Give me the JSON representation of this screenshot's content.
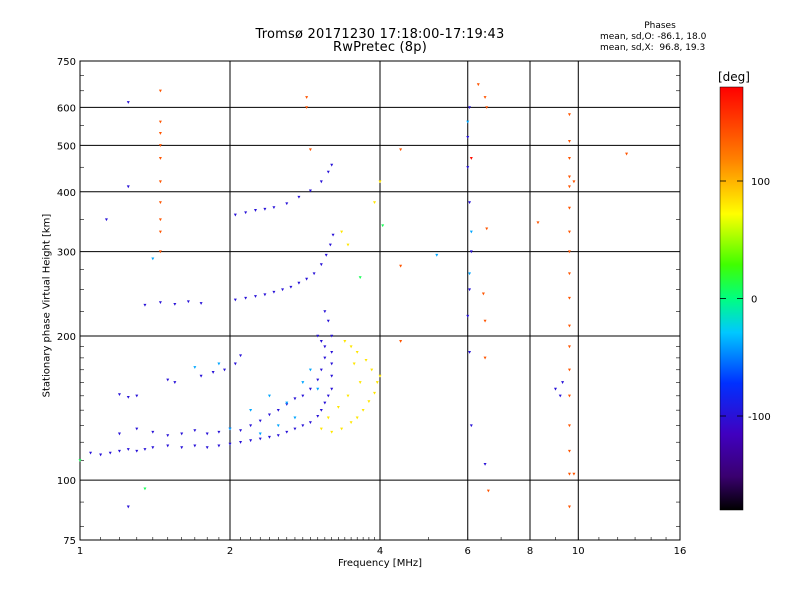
{
  "header": {
    "title": "Tromsø 20171230 17:18:00-17:19:43",
    "subtitle": "RwPretec (8p)"
  },
  "stats": {
    "heading": "Phases",
    "line_o": "mean, sd,O: -86.1, 18.0",
    "line_x": "mean, sd,X:  96.8, 19.3"
  },
  "colorbar": {
    "unit": "[deg]",
    "ticks": [
      100,
      0,
      -100
    ],
    "range": [
      -180,
      180
    ]
  },
  "chart_data": {
    "type": "scatter",
    "title": "Tromsø 20171230 17:18:00-17:19:43",
    "subtitle": "RwPretec (8p)",
    "xlabel": "Frequency [MHz]",
    "ylabel": "Stationary phase Virtual Height [km]",
    "x_scale": "log",
    "y_scale": "log",
    "xlim": [
      1,
      16
    ],
    "ylim": [
      75,
      750
    ],
    "xticks": [
      1,
      2,
      4,
      6,
      8,
      10,
      16
    ],
    "yticks": [
      75,
      100,
      200,
      300,
      400,
      500,
      600,
      750
    ],
    "grid": true,
    "colorbar_label": "[deg]",
    "series": [
      {
        "color_phase": -100,
        "points": [
          [
            1.05,
            114
          ],
          [
            1.1,
            113
          ],
          [
            1.15,
            114
          ],
          [
            1.2,
            115
          ],
          [
            1.25,
            116
          ],
          [
            1.3,
            115
          ],
          [
            1.35,
            116
          ],
          [
            1.4,
            117
          ],
          [
            1.5,
            118
          ],
          [
            1.6,
            117
          ],
          [
            1.7,
            118
          ],
          [
            1.8,
            117
          ],
          [
            1.9,
            118
          ],
          [
            2.0,
            119
          ],
          [
            2.1,
            120
          ],
          [
            2.2,
            121
          ],
          [
            2.3,
            122
          ],
          [
            2.4,
            123
          ],
          [
            2.5,
            124
          ],
          [
            2.6,
            126
          ],
          [
            2.7,
            128
          ],
          [
            2.8,
            130
          ],
          [
            2.9,
            132
          ],
          [
            3.0,
            136
          ],
          [
            3.05,
            140
          ],
          [
            3.1,
            145
          ],
          [
            3.15,
            150
          ],
          [
            3.2,
            155
          ],
          [
            3.2,
            165
          ],
          [
            3.2,
            175
          ],
          [
            3.2,
            185
          ],
          [
            3.2,
            200
          ],
          [
            3.15,
            215
          ],
          [
            3.1,
            225
          ],
          [
            1.2,
            125
          ],
          [
            1.3,
            128
          ],
          [
            1.4,
            126
          ],
          [
            1.5,
            124
          ],
          [
            1.6,
            125
          ],
          [
            1.7,
            127
          ],
          [
            1.8,
            125
          ],
          [
            1.9,
            126
          ],
          [
            2.0,
            128
          ],
          [
            2.1,
            127
          ],
          [
            2.2,
            130
          ],
          [
            2.3,
            133
          ],
          [
            2.4,
            137
          ],
          [
            2.5,
            140
          ],
          [
            2.6,
            144
          ],
          [
            2.7,
            148
          ],
          [
            2.8,
            150
          ],
          [
            2.9,
            155
          ],
          [
            3.0,
            162
          ],
          [
            3.05,
            170
          ],
          [
            3.1,
            180
          ],
          [
            3.1,
            190
          ],
          [
            3.05,
            195
          ],
          [
            3.0,
            200
          ],
          [
            1.2,
            151
          ],
          [
            1.25,
            149
          ],
          [
            1.3,
            150
          ],
          [
            1.5,
            162
          ],
          [
            1.55,
            160
          ],
          [
            1.75,
            165
          ],
          [
            1.85,
            168
          ],
          [
            1.95,
            170
          ],
          [
            2.05,
            175
          ],
          [
            2.1,
            182
          ],
          [
            1.35,
            232
          ],
          [
            1.45,
            235
          ],
          [
            1.55,
            233
          ],
          [
            1.65,
            236
          ],
          [
            1.75,
            234
          ],
          [
            2.05,
            238
          ],
          [
            2.15,
            240
          ],
          [
            2.25,
            242
          ],
          [
            2.35,
            244
          ],
          [
            2.45,
            247
          ],
          [
            2.55,
            250
          ],
          [
            2.65,
            253
          ],
          [
            2.75,
            258
          ],
          [
            2.85,
            263
          ],
          [
            2.95,
            270
          ],
          [
            3.05,
            282
          ],
          [
            3.12,
            295
          ],
          [
            3.18,
            310
          ],
          [
            3.22,
            325
          ],
          [
            2.05,
            358
          ],
          [
            2.15,
            362
          ],
          [
            2.25,
            366
          ],
          [
            2.35,
            368
          ],
          [
            2.45,
            371
          ],
          [
            2.6,
            378
          ],
          [
            2.75,
            390
          ],
          [
            2.9,
            402
          ],
          [
            3.05,
            420
          ],
          [
            3.15,
            440
          ],
          [
            3.2,
            455
          ],
          [
            1.13,
            350
          ],
          [
            1.25,
            410
          ],
          [
            1.25,
            615
          ],
          [
            6.0,
            450
          ],
          [
            6.0,
            520
          ],
          [
            6.05,
            600
          ],
          [
            6.05,
            380
          ],
          [
            6.1,
            300
          ],
          [
            6.05,
            250
          ],
          [
            6.0,
            220
          ],
          [
            6.05,
            185
          ],
          [
            6.1,
            130
          ],
          [
            6.5,
            108
          ],
          [
            9.0,
            155
          ],
          [
            9.2,
            150
          ],
          [
            9.3,
            160
          ],
          [
            1.25,
            88
          ]
        ]
      },
      {
        "color_phase": -40,
        "points": [
          [
            2.0,
            128
          ],
          [
            2.2,
            140
          ],
          [
            2.4,
            150
          ],
          [
            2.6,
            145
          ],
          [
            2.8,
            160
          ],
          [
            2.9,
            170
          ],
          [
            3.0,
            155
          ],
          [
            2.7,
            135
          ],
          [
            2.5,
            130
          ],
          [
            2.3,
            125
          ],
          [
            1.9,
            175
          ],
          [
            1.7,
            172
          ],
          [
            1.4,
            290
          ],
          [
            6.0,
            560
          ],
          [
            6.1,
            330
          ],
          [
            6.05,
            270
          ],
          [
            5.2,
            295
          ]
        ]
      },
      {
        "color_phase": 80,
        "points": [
          [
            3.05,
            128
          ],
          [
            3.2,
            126
          ],
          [
            3.35,
            128
          ],
          [
            3.5,
            132
          ],
          [
            3.6,
            135
          ],
          [
            3.7,
            140
          ],
          [
            3.8,
            146
          ],
          [
            3.9,
            152
          ],
          [
            3.95,
            160
          ],
          [
            4.0,
            165
          ],
          [
            3.85,
            170
          ],
          [
            3.75,
            178
          ],
          [
            3.6,
            185
          ],
          [
            3.5,
            190
          ],
          [
            3.4,
            195
          ],
          [
            3.55,
            175
          ],
          [
            3.65,
            160
          ],
          [
            3.45,
            150
          ],
          [
            3.3,
            142
          ],
          [
            3.15,
            135
          ],
          [
            3.35,
            330
          ],
          [
            3.45,
            310
          ],
          [
            3.9,
            380
          ],
          [
            4.0,
            420
          ]
        ]
      },
      {
        "color_phase": 140,
        "points": [
          [
            1.45,
            650
          ],
          [
            1.45,
            560
          ],
          [
            1.45,
            530
          ],
          [
            1.45,
            500
          ],
          [
            1.45,
            470
          ],
          [
            1.45,
            420
          ],
          [
            1.45,
            380
          ],
          [
            1.45,
            350
          ],
          [
            1.45,
            330
          ],
          [
            1.45,
            300
          ],
          [
            2.85,
            630
          ],
          [
            2.85,
            600
          ],
          [
            2.9,
            490
          ],
          [
            4.4,
            490
          ],
          [
            4.4,
            280
          ],
          [
            4.4,
            195
          ],
          [
            6.3,
            670
          ],
          [
            6.5,
            630
          ],
          [
            6.55,
            600
          ],
          [
            6.55,
            335
          ],
          [
            6.45,
            245
          ],
          [
            6.5,
            215
          ],
          [
            6.5,
            180
          ],
          [
            6.6,
            95
          ],
          [
            9.6,
            580
          ],
          [
            9.6,
            510
          ],
          [
            9.6,
            470
          ],
          [
            9.6,
            430
          ],
          [
            9.6,
            410
          ],
          [
            9.6,
            370
          ],
          [
            9.6,
            330
          ],
          [
            9.6,
            300
          ],
          [
            9.6,
            270
          ],
          [
            9.6,
            240
          ],
          [
            9.6,
            210
          ],
          [
            9.6,
            190
          ],
          [
            9.6,
            170
          ],
          [
            9.6,
            150
          ],
          [
            9.6,
            130
          ],
          [
            9.6,
            115
          ],
          [
            9.6,
            103
          ],
          [
            9.6,
            88
          ],
          [
            9.8,
            420
          ],
          [
            9.8,
            103
          ],
          [
            12.5,
            480
          ],
          [
            8.3,
            345
          ]
        ]
      },
      {
        "color_phase": 175,
        "points": [
          [
            6.1,
            470
          ]
        ]
      },
      {
        "color_phase": 10,
        "points": [
          [
            1.35,
            96
          ],
          [
            3.65,
            265
          ],
          [
            1.0,
            110
          ],
          [
            4.05,
            340
          ]
        ]
      }
    ]
  }
}
